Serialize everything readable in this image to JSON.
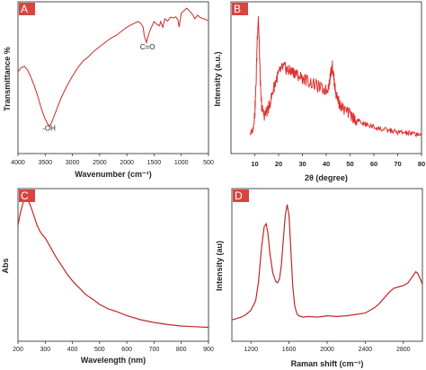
{
  "chart_data": [
    {
      "panel": "A",
      "type": "line",
      "xlabel": "Wavenumber (cm⁻¹)",
      "ylabel": "Transmittance %",
      "xlim": [
        4000,
        500
      ],
      "xticks": [
        4000,
        3500,
        3000,
        2500,
        2000,
        1500,
        1000,
        500
      ],
      "ylim": [
        0,
        100
      ],
      "color": "#cc2a2a",
      "annotations": [
        {
          "text": "-OH",
          "x": 3430,
          "y": 10
        },
        {
          "text": "C=O",
          "x": 1620,
          "y": 68
        }
      ],
      "x": [
        4000,
        3940,
        3880,
        3820,
        3760,
        3700,
        3640,
        3580,
        3520,
        3460,
        3420,
        3380,
        3320,
        3260,
        3200,
        3100,
        3000,
        2900,
        2800,
        2700,
        2600,
        2500,
        2400,
        2300,
        2200,
        2100,
        2000,
        1900,
        1850,
        1800,
        1750,
        1700,
        1680,
        1640,
        1600,
        1560,
        1500,
        1450,
        1400,
        1380,
        1340,
        1300,
        1250,
        1200,
        1150,
        1100,
        1060,
        1040,
        1000,
        950,
        900,
        850,
        800,
        750,
        700,
        650,
        600,
        550,
        500
      ],
      "y": [
        52,
        55,
        56,
        53,
        48,
        42,
        35,
        27,
        20,
        15,
        13,
        16,
        22,
        28,
        34,
        42,
        49,
        55,
        60,
        63,
        67,
        70,
        73,
        76,
        78,
        81,
        84,
        86,
        87,
        88,
        87,
        84,
        78,
        73,
        79,
        83,
        88,
        86,
        85,
        88,
        84,
        90,
        88,
        92,
        91,
        92,
        90,
        85,
        94,
        96,
        97,
        95,
        93,
        91,
        92,
        90,
        91,
        89,
        88
      ]
    },
    {
      "panel": "B",
      "type": "line",
      "xlabel": "2θ (degree)",
      "ylabel": "Intensity (a.u.)",
      "xlim": [
        0,
        80
      ],
      "xticks": [
        10,
        20,
        30,
        40,
        50,
        60,
        70,
        80
      ],
      "ylim": [
        0,
        100
      ],
      "color": "#e03030",
      "x": [
        8,
        9,
        9.5,
        10,
        10.5,
        11,
        11.5,
        12,
        12.5,
        13,
        14,
        15,
        16,
        17,
        18,
        19,
        20,
        21,
        22,
        23,
        24,
        25,
        26,
        27,
        28,
        30,
        32,
        34,
        36,
        38,
        40,
        41,
        42,
        42.5,
        43,
        43.5,
        44,
        45,
        46,
        48,
        50,
        52,
        54,
        56,
        58,
        60,
        62,
        64,
        66,
        68,
        70,
        72,
        74,
        76,
        78,
        80
      ],
      "y": [
        10,
        12,
        16,
        25,
        45,
        78,
        97,
        68,
        38,
        28,
        24,
        26,
        30,
        37,
        44,
        50,
        54,
        57,
        59,
        58,
        56,
        56,
        55,
        55,
        53,
        51,
        49,
        47,
        45,
        43,
        42,
        45,
        55,
        60,
        54,
        46,
        40,
        35,
        30,
        27,
        24,
        21,
        19,
        17,
        16,
        15,
        14,
        13,
        12.5,
        12,
        11,
        11,
        10.5,
        10,
        10,
        9.5
      ]
    },
    {
      "panel": "C",
      "type": "line",
      "xlabel": "Wavelength (nm)",
      "ylabel": "Abs",
      "xlim": [
        200,
        900
      ],
      "xticks": [
        200,
        300,
        400,
        500,
        600,
        700,
        800,
        900
      ],
      "ylim": [
        0,
        100
      ],
      "color": "#c02828",
      "x": [
        200,
        210,
        220,
        230,
        240,
        250,
        260,
        270,
        280,
        290,
        300,
        320,
        340,
        360,
        380,
        400,
        420,
        450,
        480,
        500,
        530,
        560,
        600,
        650,
        700,
        750,
        800,
        850,
        900
      ],
      "y": [
        78,
        88,
        95,
        97,
        95,
        90,
        84,
        78,
        74,
        71,
        69,
        62,
        55,
        49,
        43,
        38,
        34,
        28,
        24,
        21,
        18,
        16,
        13,
        10,
        8,
        6.5,
        5.5,
        5,
        4.5
      ]
    },
    {
      "panel": "D",
      "type": "line",
      "xlabel": "Raman shift (cm⁻¹)",
      "ylabel": "Intensity (au)",
      "xlim": [
        1000,
        3000
      ],
      "xticks": [
        1200,
        1600,
        2000,
        2400,
        2800
      ],
      "ylim": [
        0,
        100
      ],
      "color": "#c02828",
      "x": [
        1000,
        1050,
        1100,
        1150,
        1200,
        1250,
        1280,
        1310,
        1340,
        1360,
        1380,
        1400,
        1430,
        1460,
        1480,
        1500,
        1520,
        1540,
        1560,
        1580,
        1600,
        1620,
        1640,
        1660,
        1680,
        1700,
        1750,
        1800,
        1900,
        2000,
        2100,
        2200,
        2300,
        2400,
        2450,
        2500,
        2550,
        2600,
        2650,
        2700,
        2750,
        2800,
        2850,
        2900,
        2930,
        2950,
        2970,
        3000
      ],
      "y": [
        10,
        11,
        12,
        14,
        17,
        24,
        38,
        62,
        78,
        80,
        72,
        58,
        44,
        38,
        37,
        40,
        50,
        68,
        86,
        94,
        86,
        60,
        34,
        20,
        15,
        13,
        12,
        12.5,
        12,
        13,
        12.5,
        13,
        14,
        15,
        17,
        19,
        22,
        26,
        30,
        33,
        34,
        35,
        37,
        42,
        45,
        44,
        41,
        36
      ]
    }
  ]
}
